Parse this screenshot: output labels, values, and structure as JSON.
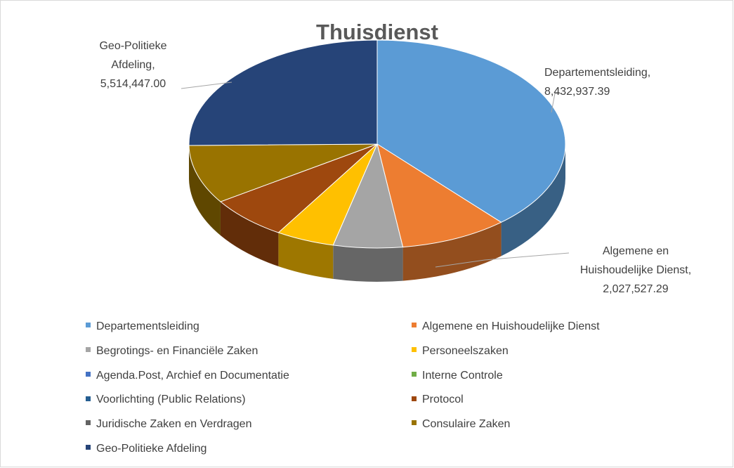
{
  "chart_data": {
    "type": "pie",
    "title": "Thuisdienst",
    "categories": [
      "Departementsleiding",
      "Algemene en Huishoudelijke Dienst",
      "Begrotings- en Financiële Zaken",
      "Personeelszaken",
      "Agenda.Post, Archief en Documentatie",
      "Interne Controle",
      "Voorlichting (Public Relations)",
      "Protocol",
      "Juridische Zaken en Verdragen",
      "Consulaire Zaken",
      "Geo-Politieke Afdeling"
    ],
    "values": [
      8432937.39,
      2027527.29,
      1300000,
      1100000,
      0,
      0,
      0,
      1500000,
      0,
      2000000,
      5514447.0
    ],
    "value_labels": [
      "8,432,937.39",
      "2,027,527.29",
      null,
      null,
      null,
      null,
      null,
      null,
      null,
      null,
      "5,514,447.00"
    ],
    "label_separator": ", ",
    "colors": [
      "#5b9bd5",
      "#ed7d31",
      "#a5a5a5",
      "#ffc000",
      "#4472c4",
      "#70ad47",
      "#255e91",
      "#9e480e",
      "#636363",
      "#997300",
      "#264478"
    ],
    "legend": "bottom"
  }
}
